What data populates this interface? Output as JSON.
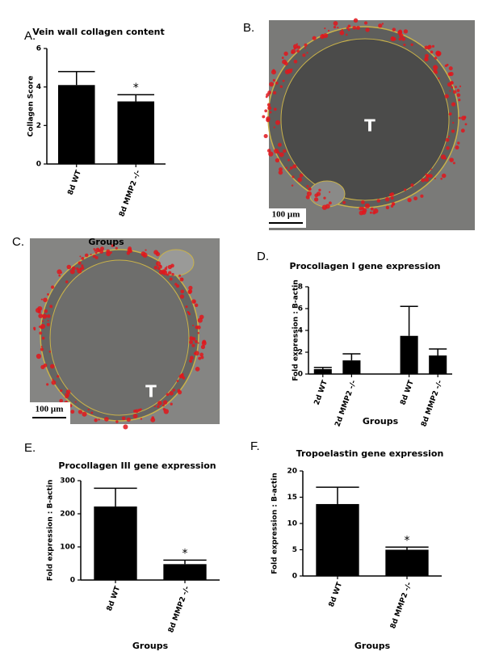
{
  "chart_data": [
    {
      "type": "bar",
      "panel": "A.",
      "title": "Vein wall collagen content",
      "y_label": "Collagen Score",
      "x_label": "Groups",
      "categories": [
        "8d WT",
        "8d MMP2 -/-"
      ],
      "values": [
        4.1,
        3.25
      ],
      "errors": [
        0.7,
        0.35
      ],
      "significance": [
        null,
        "*"
      ],
      "color": "#000000",
      "ylim": [
        0,
        6
      ],
      "yticks": [
        0,
        2,
        4,
        6
      ]
    },
    {
      "type": "bar",
      "panel": "D.",
      "title": "Procollagen I gene expression",
      "y_label": "Fold expression : B-actin",
      "x_label": "Groups",
      "categories": [
        "2d WT",
        "2d MMP2 -/-",
        null,
        "8d WT",
        "8d MMP2 -/-"
      ],
      "values": [
        0.45,
        1.25,
        null,
        3.5,
        1.7
      ],
      "errors": [
        0.15,
        0.6,
        null,
        2.7,
        0.6
      ],
      "color": "#000000",
      "ylim": [
        0,
        8
      ],
      "yticks": [
        0,
        2,
        4,
        6,
        8
      ]
    },
    {
      "type": "bar",
      "panel": "E.",
      "title": "Procollagen III gene expression",
      "y_label": "Fold expression : B-actin",
      "x_label": "Groups",
      "categories": [
        "8d WT",
        "8d MMP2 -/-"
      ],
      "values": [
        222,
        48
      ],
      "errors": [
        55,
        12
      ],
      "significance": [
        null,
        "*"
      ],
      "color": "#000000",
      "ylim": [
        0,
        300
      ],
      "yticks": [
        0,
        100,
        200,
        300
      ]
    },
    {
      "type": "bar",
      "panel": "F.",
      "title": "Tropoelastin gene expression",
      "y_label": "Fold expression : B-actin",
      "x_label": "Groups",
      "categories": [
        "8d WT",
        "8d MMP2 -/-"
      ],
      "values": [
        13.7,
        5.0
      ],
      "errors": [
        3.2,
        0.5
      ],
      "significance": [
        null,
        "*"
      ],
      "color": "#000000",
      "ylim": [
        0,
        20
      ],
      "yticks": [
        0,
        5,
        10,
        15,
        20
      ]
    }
  ],
  "images": [
    {
      "panel": "B.",
      "label": "T",
      "scale_bar": "100 µm"
    },
    {
      "panel": "C.",
      "label": "T",
      "scale_bar": "100 µm"
    }
  ]
}
